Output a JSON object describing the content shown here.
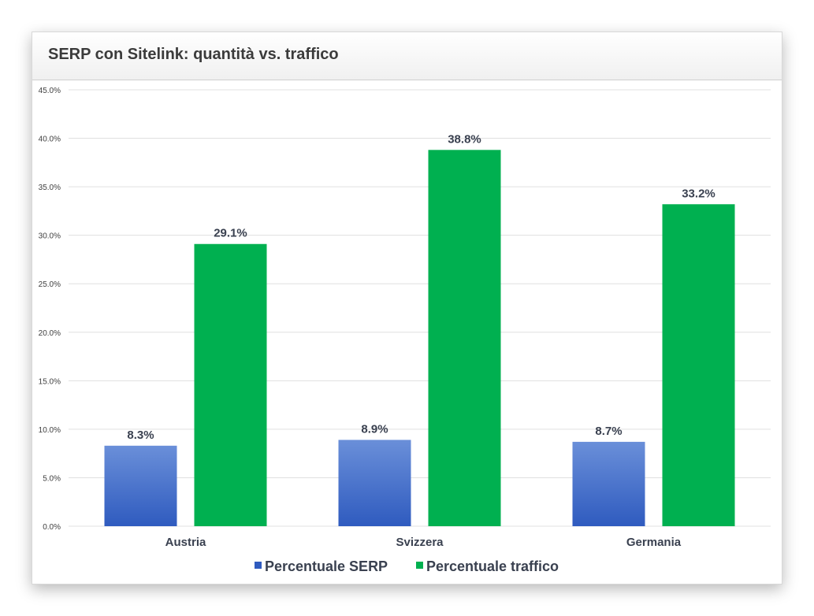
{
  "header": {
    "title": "SERP con Sitelink: quantità vs. traffico"
  },
  "colors": {
    "series_serp_top": "#6a8fd9",
    "series_serp_bottom": "#2f5bbf",
    "series_traffic": "#00b050",
    "grid": "#e0e0e0",
    "text": "#3a4150"
  },
  "chart_data": {
    "type": "bar",
    "title": "SERP con Sitelink: quantità vs. traffico",
    "categories": [
      "Austria",
      "Svizzera",
      "Germania"
    ],
    "series": [
      {
        "name": "Percentuale SERP",
        "values": [
          8.3,
          8.9,
          8.7
        ],
        "labels": [
          "8.3%",
          "8.9%",
          "8.7%"
        ]
      },
      {
        "name": "Percentuale traffico",
        "values": [
          29.1,
          38.8,
          33.2
        ],
        "labels": [
          "29.1%",
          "38.8%",
          "33.2%"
        ]
      }
    ],
    "ylim": [
      0,
      45
    ],
    "yticks": [
      0,
      5,
      10,
      15,
      20,
      25,
      30,
      35,
      40,
      45
    ],
    "ytick_labels": [
      "0.0%",
      "5.0%",
      "10.0%",
      "15.0%",
      "20.0%",
      "25.0%",
      "30.0%",
      "35.0%",
      "40.0%",
      "45.0%"
    ],
    "xlabel": "",
    "ylabel": "",
    "grid": true,
    "legend": "bottom"
  }
}
